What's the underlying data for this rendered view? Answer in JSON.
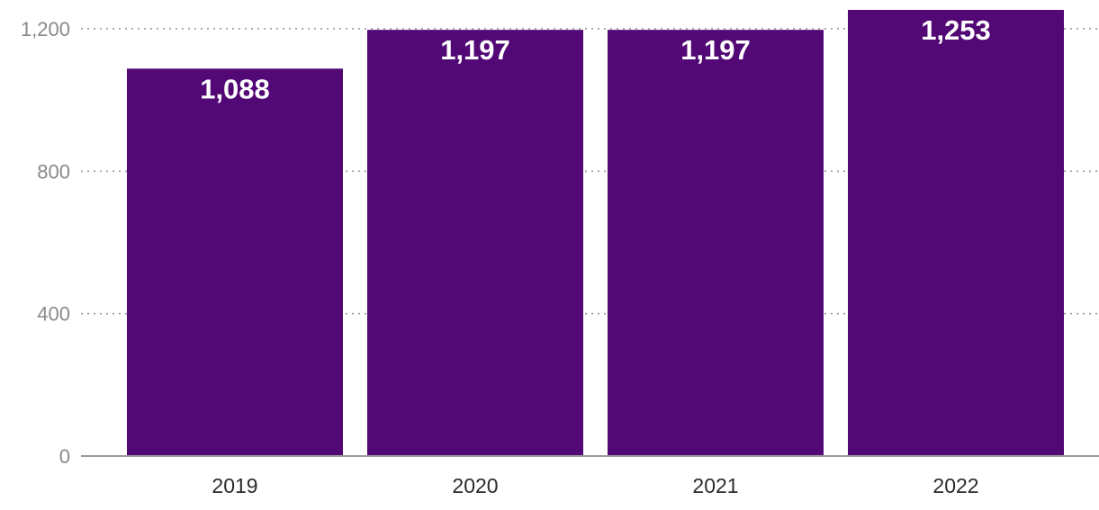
{
  "chart_data": {
    "type": "bar",
    "categories": [
      "2019",
      "2020",
      "2021",
      "2022"
    ],
    "values": [
      1088,
      1197,
      1197,
      1253
    ],
    "value_labels": [
      "1,088",
      "1,197",
      "1,197",
      "1,253"
    ],
    "y_ticks": [
      0,
      400,
      800,
      1200
    ],
    "y_tick_labels": [
      "0",
      "400",
      "800",
      "1,200"
    ],
    "ylim": [
      0,
      1253
    ],
    "grid": true,
    "bar_color": "#520875",
    "title": "",
    "xlabel": "",
    "ylabel": ""
  }
}
